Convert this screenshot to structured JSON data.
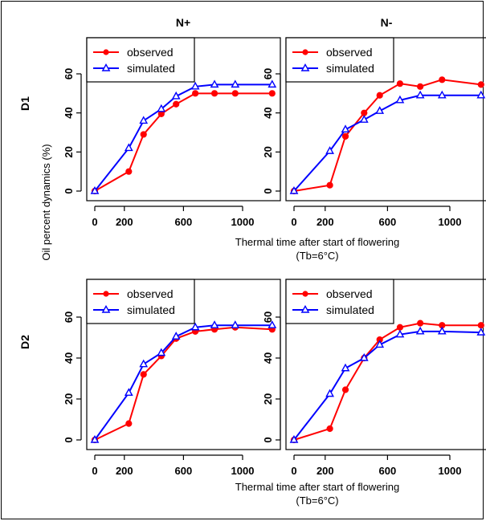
{
  "figure": {
    "col_titles": [
      "N+",
      "N-"
    ],
    "row_labels": [
      "D1",
      "D2"
    ],
    "ylabel": "Oil percent dynamics (%)",
    "xlabel_line1": "Thermal time after start of flowering",
    "xlabel_line2": "(Tb=6°C)",
    "colors": {
      "observed": "#ff0000",
      "simulated": "#0000ff"
    }
  },
  "chart_data": [
    {
      "type": "line",
      "row": "D1",
      "col": "N+",
      "xlim": [
        0,
        1250
      ],
      "ylim": [
        0,
        60
      ],
      "xticks": [
        0,
        200,
        600,
        1000
      ],
      "yticks": [
        0,
        20,
        40,
        60
      ],
      "legend": "top-left",
      "grid": false,
      "series": [
        {
          "name": "observed",
          "x": [
            0,
            230,
            330,
            450,
            550,
            680,
            810,
            950,
            1200
          ],
          "y": [
            0,
            10,
            29,
            39.5,
            44.5,
            50,
            50,
            50,
            50
          ]
        },
        {
          "name": "simulated",
          "x": [
            0,
            230,
            330,
            450,
            550,
            680,
            810,
            950,
            1200
          ],
          "y": [
            0,
            22,
            36,
            42,
            48.5,
            53.5,
            54.5,
            54.5,
            54.5
          ]
        }
      ]
    },
    {
      "type": "line",
      "row": "D1",
      "col": "N-",
      "xlim": [
        0,
        1250
      ],
      "ylim": [
        0,
        60
      ],
      "xticks": [
        0,
        200,
        600,
        1000
      ],
      "yticks": [
        0,
        20,
        40,
        60
      ],
      "legend": "top-left",
      "grid": false,
      "series": [
        {
          "name": "observed",
          "x": [
            0,
            230,
            330,
            450,
            550,
            680,
            810,
            950,
            1200
          ],
          "y": [
            0,
            3,
            28,
            40,
            49,
            55,
            53.5,
            57,
            54.5
          ]
        },
        {
          "name": "simulated",
          "x": [
            0,
            230,
            330,
            450,
            550,
            680,
            810,
            950,
            1200
          ],
          "y": [
            0,
            20.5,
            31.5,
            36.5,
            41,
            46.5,
            49,
            49,
            49
          ]
        }
      ]
    },
    {
      "type": "line",
      "row": "D2",
      "col": "N+",
      "xlim": [
        0,
        1250
      ],
      "ylim": [
        0,
        60
      ],
      "xticks": [
        0,
        200,
        600,
        1000
      ],
      "yticks": [
        0,
        20,
        40,
        60
      ],
      "legend": "top-left",
      "grid": false,
      "series": [
        {
          "name": "observed",
          "x": [
            0,
            230,
            330,
            450,
            550,
            680,
            810,
            950,
            1200
          ],
          "y": [
            0,
            8,
            32,
            41,
            49.5,
            53,
            54,
            55,
            54
          ]
        },
        {
          "name": "simulated",
          "x": [
            0,
            230,
            330,
            450,
            550,
            680,
            810,
            950,
            1200
          ],
          "y": [
            0,
            23,
            37,
            42.5,
            50.5,
            55,
            56,
            56,
            56
          ]
        }
      ]
    },
    {
      "type": "line",
      "row": "D2",
      "col": "N-",
      "xlim": [
        0,
        1250
      ],
      "ylim": [
        0,
        60
      ],
      "xticks": [
        0,
        200,
        600,
        1000
      ],
      "yticks": [
        0,
        20,
        40,
        60
      ],
      "legend": "top-left",
      "grid": false,
      "series": [
        {
          "name": "observed",
          "x": [
            0,
            230,
            330,
            450,
            550,
            680,
            810,
            950,
            1200
          ],
          "y": [
            0,
            5.5,
            24.5,
            40,
            49,
            55,
            57,
            56,
            56
          ]
        },
        {
          "name": "simulated",
          "x": [
            0,
            230,
            330,
            450,
            550,
            680,
            810,
            950,
            1200
          ],
          "y": [
            0,
            22.5,
            35,
            40,
            46.5,
            51.5,
            53,
            53,
            52.5
          ]
        }
      ]
    }
  ]
}
